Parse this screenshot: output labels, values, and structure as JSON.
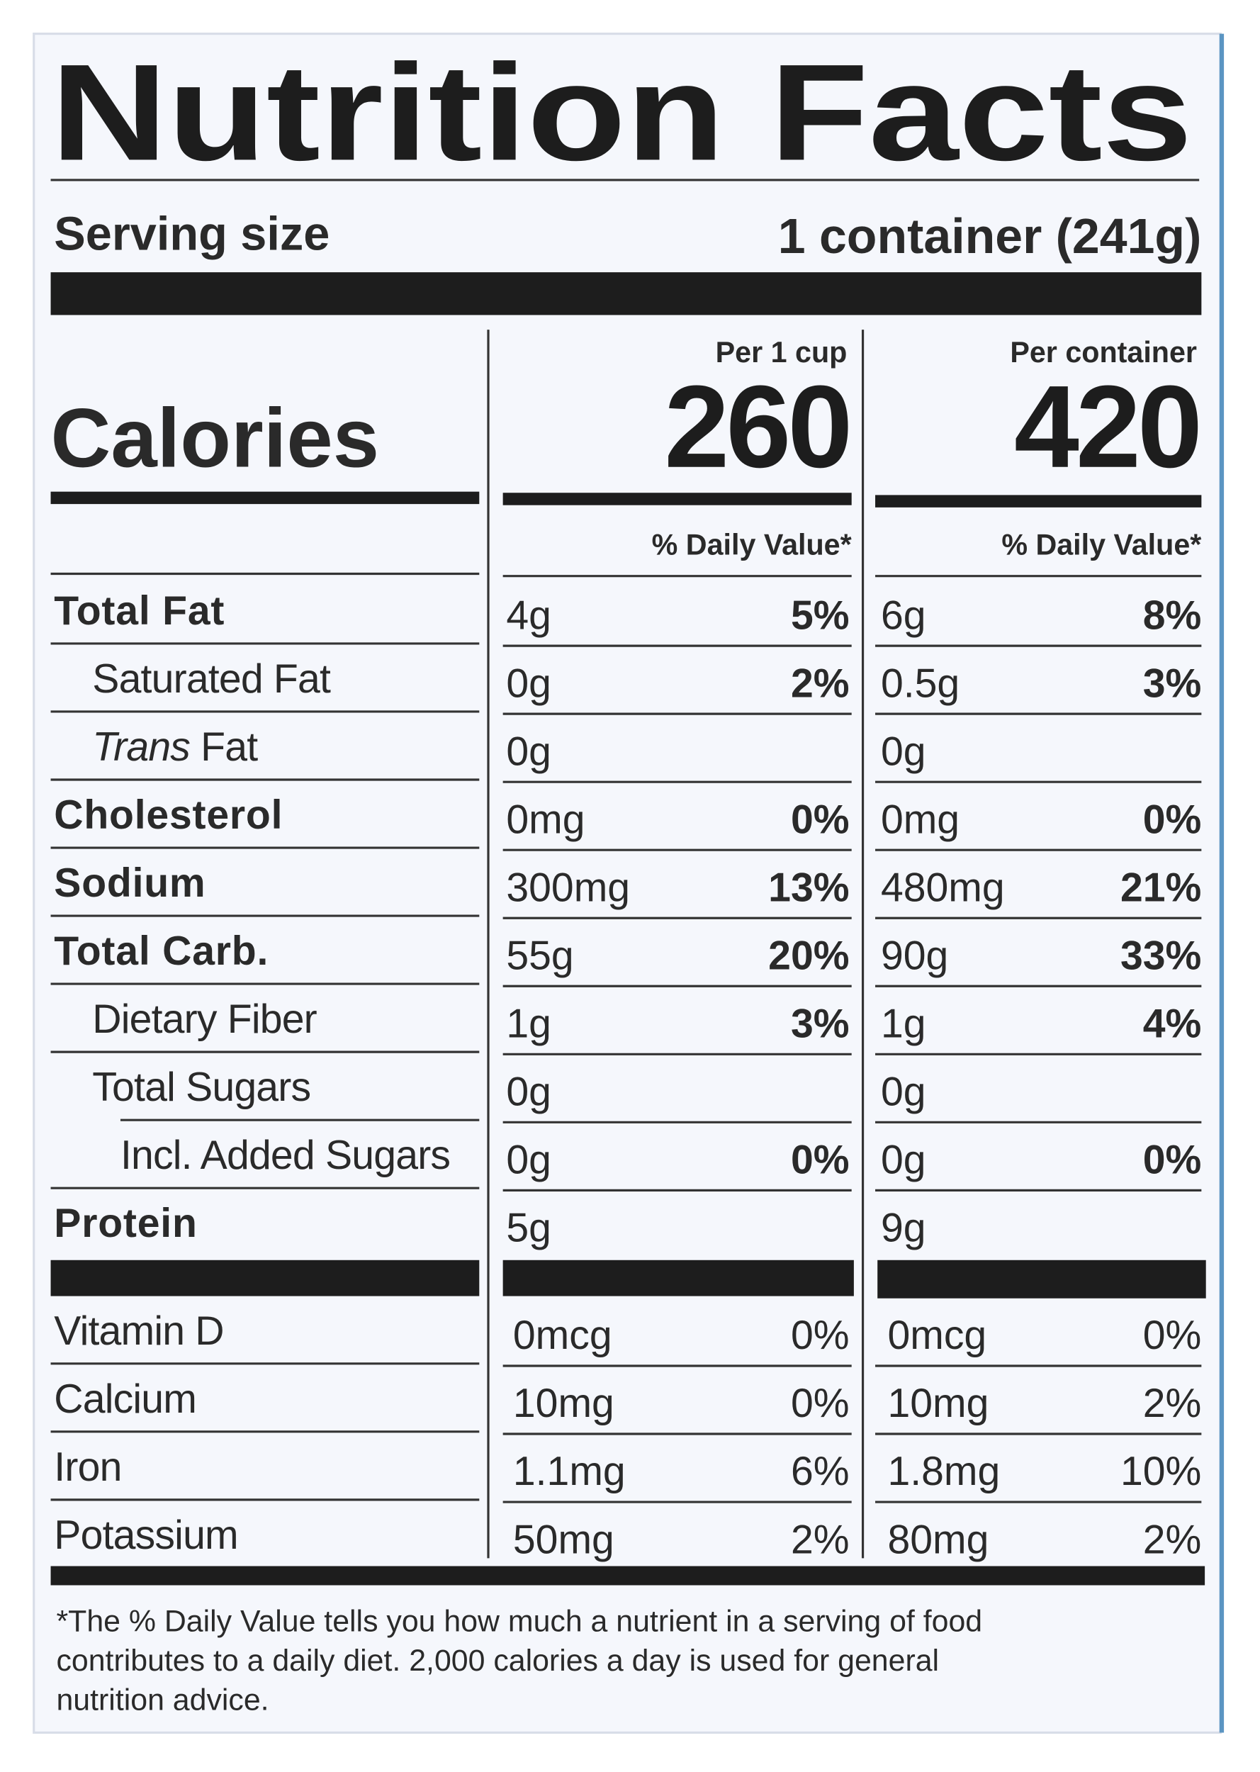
{
  "title": "Nutrition Facts",
  "serving": {
    "label": "Serving size",
    "value": "1 container (241g)"
  },
  "calories": {
    "label": "Calories"
  },
  "columns": [
    {
      "header": "Per 1 cup",
      "calories": 260,
      "dv_header": "% Daily Value*"
    },
    {
      "header": "Per container",
      "calories": 420,
      "dv_header": "% Daily Value*"
    }
  ],
  "nutrients": [
    {
      "label": "Total Fat",
      "cells": [
        [
          "4g",
          "5%"
        ],
        [
          "6g",
          "8%"
        ]
      ]
    },
    {
      "label": "Saturated Fat",
      "cells": [
        [
          "0g",
          "2%"
        ],
        [
          "0.5g",
          "3%"
        ]
      ]
    },
    {
      "label": {
        "italic": "Trans",
        "text": "Fat"
      },
      "cells": [
        [
          "0g",
          null
        ],
        [
          "0g",
          null
        ]
      ]
    },
    {
      "label": "Cholesterol",
      "cells": [
        [
          "0mg",
          "0%"
        ],
        [
          "0mg",
          "0%"
        ]
      ]
    },
    {
      "label": "Sodium",
      "cells": [
        [
          "300mg",
          "13%"
        ],
        [
          "480mg",
          "21%"
        ]
      ]
    },
    {
      "label": "Total Carb.",
      "cells": [
        [
          "55g",
          "20%"
        ],
        [
          "90g",
          "33%"
        ]
      ]
    },
    {
      "label": "Dietary Fiber",
      "cells": [
        [
          "1g",
          "3%"
        ],
        [
          "1g",
          "4%"
        ]
      ]
    },
    {
      "label": "Total Sugars",
      "cells": [
        [
          "0g",
          null
        ],
        [
          "0g",
          null
        ]
      ]
    },
    {
      "label": "Incl. Added Sugars",
      "cells": [
        [
          "0g",
          "0%"
        ],
        [
          "0g",
          "0%"
        ]
      ]
    },
    {
      "label": "Protein",
      "cells": [
        [
          "5g",
          null
        ],
        [
          "9g",
          null
        ]
      ]
    }
  ],
  "vitamins": [
    {
      "label": "Vitamin D",
      "cells": [
        [
          "0mcg",
          "0%"
        ],
        [
          "0mcg",
          "0%"
        ]
      ]
    },
    {
      "label": "Calcium",
      "cells": [
        [
          "10mg",
          "0%"
        ],
        [
          "10mg",
          "2%"
        ]
      ]
    },
    {
      "label": "Iron",
      "cells": [
        [
          "1.1mg",
          "6%"
        ],
        [
          "1.8mg",
          "10%"
        ]
      ]
    },
    {
      "label": "Potassium",
      "cells": [
        [
          "50mg",
          "2%"
        ],
        [
          "80mg",
          "2%"
        ]
      ]
    }
  ],
  "footnote": [
    "*The % Daily Value tells you how much a nutrient in a serving of food",
    "contributes to a daily diet. 2,000 calories a day is used for general",
    "nutrition advice."
  ]
}
